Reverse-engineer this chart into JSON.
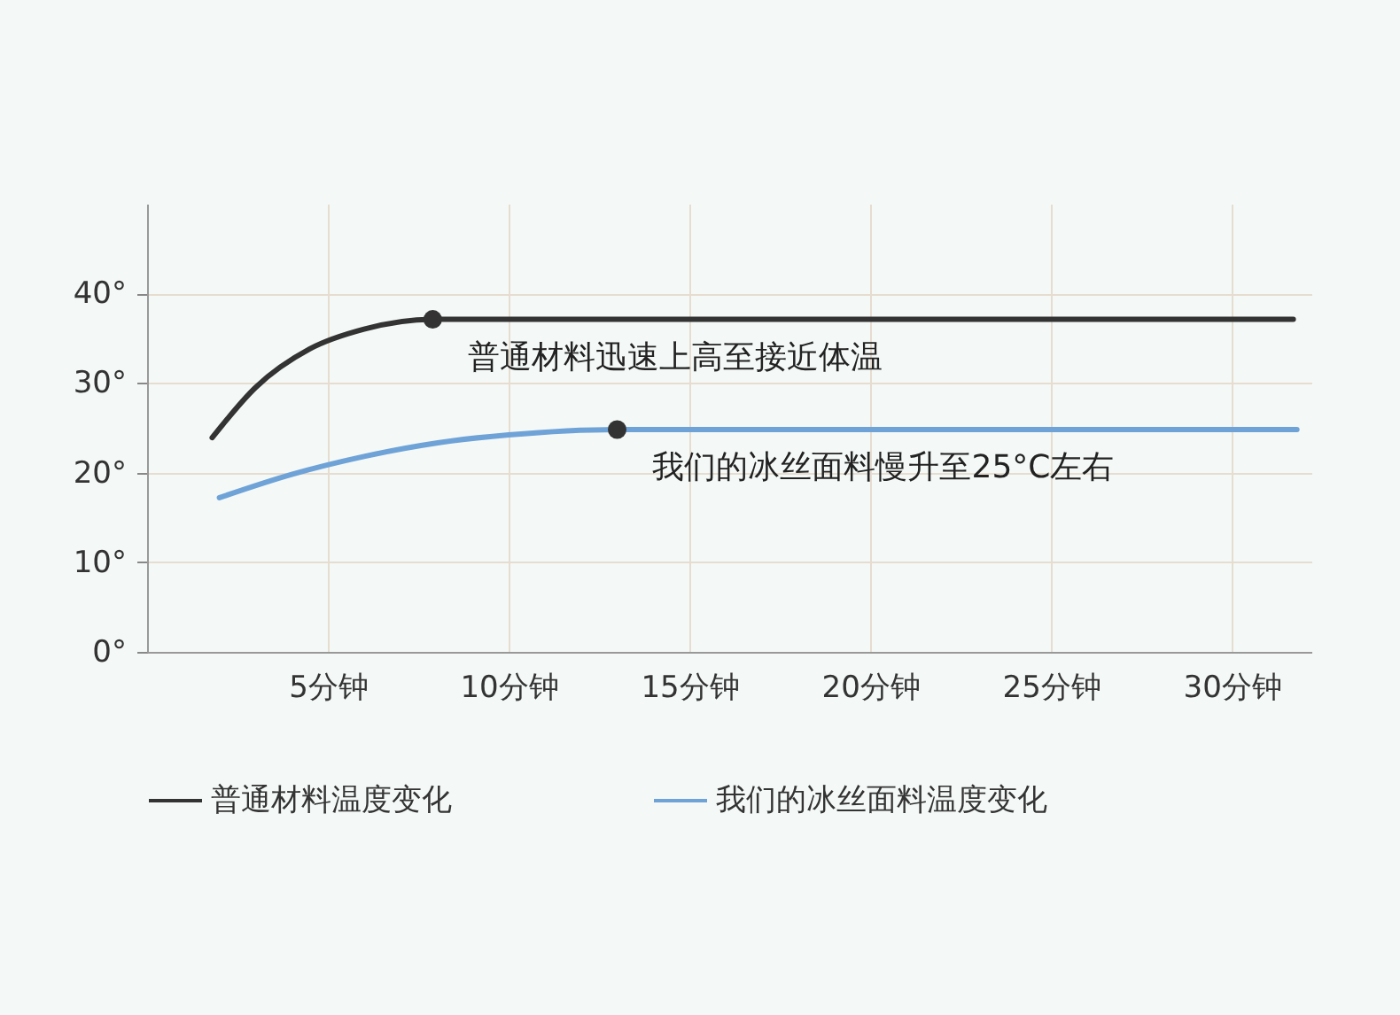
{
  "chart_data": {
    "type": "line",
    "series": [
      {
        "name": "普通材料温度变化",
        "color": "#333333",
        "x": [
          1.8,
          3,
          4.5,
          6,
          7.9,
          31.7
        ],
        "values": [
          23.9,
          29.5,
          33.8,
          36,
          37.1,
          37.1
        ]
      },
      {
        "name": "我们的冰丝面料温度变化",
        "color": "#6fa3d8",
        "x": [
          2,
          4,
          6,
          8,
          10,
          13,
          31.8
        ],
        "values": [
          17.2,
          19.8,
          21.8,
          23.3,
          24.2,
          24.8,
          24.8
        ]
      }
    ],
    "xlim": [
      0,
      32.2
    ],
    "ylim": [
      0,
      50
    ],
    "xticks": [
      {
        "value": 5,
        "label": "5分钟"
      },
      {
        "value": 10,
        "label": "10分钟"
      },
      {
        "value": 15,
        "label": "15分钟"
      },
      {
        "value": 20,
        "label": "20分钟"
      },
      {
        "value": 25,
        "label": "25分钟"
      },
      {
        "value": 30,
        "label": "30分钟"
      }
    ],
    "yticks": [
      {
        "value": 0,
        "label": "0°"
      },
      {
        "value": 10,
        "label": "10°"
      },
      {
        "value": 20,
        "label": "20°"
      },
      {
        "value": 30,
        "label": "30°"
      },
      {
        "value": 40,
        "label": "40°"
      }
    ],
    "annotations": [
      {
        "text": "普通材料迅速上高至接近体温",
        "x": 7.9,
        "y": 37.1
      },
      {
        "text": "我们的冰丝面料慢升至25°C左右",
        "x": 13,
        "y": 24.8
      }
    ],
    "grid": true,
    "legend": "bottom"
  }
}
